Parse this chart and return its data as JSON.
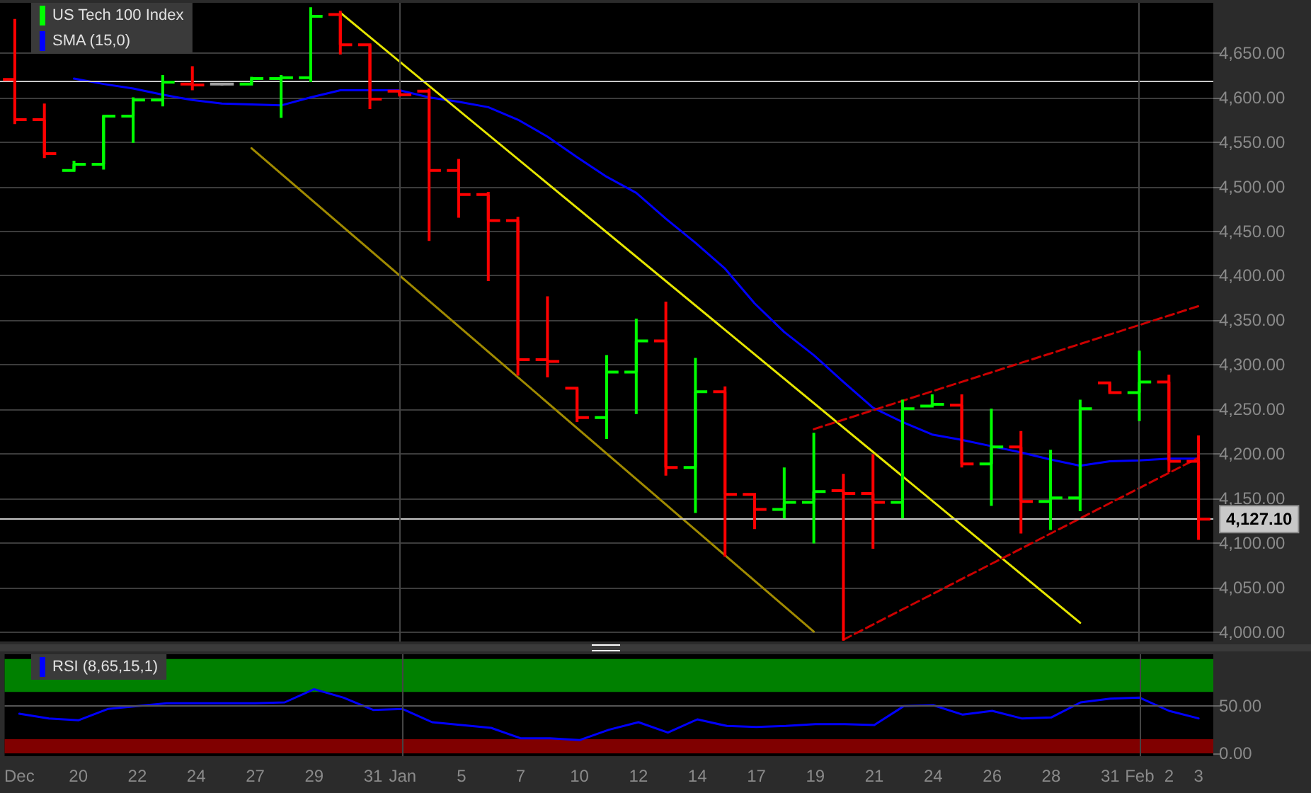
{
  "chart_data": [
    {
      "type": "candlestick",
      "categories": [
        "Dec",
        null,
        "20",
        null,
        "22",
        null,
        "24",
        null,
        "27",
        null,
        "29",
        null,
        "31",
        "Jan",
        null,
        "5",
        null,
        "7",
        null,
        "10",
        null,
        "12",
        null,
        "14",
        null,
        "17",
        null,
        "19",
        null,
        "21",
        null,
        "24",
        null,
        "26",
        null,
        "28",
        null,
        "31",
        "Feb",
        "2",
        "3"
      ],
      "series": [
        {
          "name": "US Tech 100 Index",
          "type": "candlestick",
          "color": "#00ff00",
          "colors": [
            "#ff0000",
            "#ff0000",
            "#00ff00",
            "#00ff00",
            "#00ff00",
            "#00ff00",
            "#ff0000",
            "#a0a0a0",
            "#00ff00",
            "#00ff00",
            "#00ff00",
            "#ff0000",
            "#ff0000",
            "#ff0000",
            "#ff0000",
            "#ff0000",
            "#ff0000",
            "#ff0000",
            "#ff0000",
            "#ff0000",
            "#00ff00",
            "#00ff00",
            "#ff0000",
            "#00ff00",
            "#ff0000",
            "#ff0000",
            "#00ff00",
            "#00ff00",
            "#ff0000",
            "#ff0000",
            "#00ff00",
            "#00ff00",
            "#ff0000",
            "#00ff00",
            "#ff0000",
            "#00ff00",
            "#00ff00",
            "#ff0000",
            "#00ff00",
            "#ff0000",
            "#ff0000"
          ],
          "ohlc": [
            [
              4620,
              4688,
              4570,
              4575
            ],
            [
              4575,
              4593,
              4532,
              4537
            ],
            [
              4518,
              4529,
              4518,
              4525
            ],
            [
              4525,
              4580,
              4519,
              4579
            ],
            [
              4579,
              4600,
              4549,
              4597
            ],
            [
              4597,
              4625,
              4590,
              4617
            ],
            [
              4615,
              4635,
              4608,
              4614
            ],
            [
              4615,
              4616,
              4614,
              4615
            ],
            [
              4615,
              4623,
              4615,
              4621
            ],
            [
              4621,
              4625,
              4577,
              4622
            ],
            [
              4622,
              4701,
              4617,
              4691
            ],
            [
              4693,
              4697,
              4648,
              4659
            ],
            [
              4659,
              4659,
              4587,
              4598
            ],
            [
              4607,
              4607,
              4601,
              4603
            ],
            [
              4607,
              4610,
              4439,
              4518
            ],
            [
              4518,
              4531,
              4465,
              4491
            ],
            [
              4491,
              4494,
              4394,
              4462
            ],
            [
              4462,
              4466,
              4288,
              4306
            ],
            [
              4306,
              4377,
              4286,
              4304
            ],
            [
              4274,
              4274,
              4236,
              4241
            ],
            [
              4241,
              4311,
              4217,
              4292
            ],
            [
              4292,
              4352,
              4245,
              4327
            ],
            [
              4327,
              4371,
              4176,
              4185
            ],
            [
              4185,
              4308,
              4134,
              4270
            ],
            [
              4270,
              4276,
              4085,
              4155
            ],
            [
              4155,
              4155,
              4116,
              4138
            ],
            [
              4138,
              4185,
              4128,
              4146
            ],
            [
              4146,
              4224,
              4100,
              4158
            ],
            [
              4159,
              4178,
              3991,
              4156
            ],
            [
              4156,
              4200,
              4094,
              4146
            ],
            [
              4146,
              4261,
              4128,
              4251
            ],
            [
              4254,
              4267,
              4254,
              4256
            ],
            [
              4255,
              4267,
              4185,
              4189
            ],
            [
              4189,
              4251,
              4142,
              4208
            ],
            [
              4208,
              4226,
              4111,
              4147
            ],
            [
              4147,
              4205,
              4115,
              4151
            ],
            [
              4151,
              4261,
              4136,
              4251
            ],
            [
              4280,
              4280,
              4269,
              4269
            ],
            [
              4269,
              4316,
              4237,
              4281
            ],
            [
              4281,
              4289,
              4180,
              4192
            ],
            [
              4192,
              4221,
              4104,
              4127.1
            ]
          ]
        },
        {
          "name": "SMA (15,0)",
          "type": "line",
          "color": "#0000ff",
          "marker": "none",
          "values": [
            null,
            null,
            4621,
            4615,
            4610,
            4603,
            4597,
            4593,
            4592,
            4591,
            4600,
            4608,
            4608,
            4608,
            4600,
            4595,
            4589,
            4575,
            4556,
            4533,
            4511,
            4493,
            4464,
            4437,
            4408,
            4369,
            4337,
            4311,
            4281,
            4252,
            4236,
            4222,
            4216,
            4209,
            4202,
            4194,
            4187,
            4192,
            4193,
            4195,
            4195
          ]
        },
        {
          "type": "line",
          "color": "#e6e600",
          "marker": "none",
          "values": [
            null,
            null,
            null,
            null,
            null,
            null,
            null,
            null,
            null,
            null,
            null,
            4695,
            null,
            null,
            null,
            null,
            null,
            null,
            null,
            null,
            null,
            null,
            null,
            null,
            null,
            null,
            null,
            null,
            null,
            null,
            null,
            null,
            null,
            null,
            null,
            null,
            4011,
            null,
            null,
            null,
            null
          ]
        },
        {
          "type": "line",
          "color": "#a08a00",
          "marker": "none",
          "values": [
            null,
            null,
            null,
            null,
            null,
            null,
            null,
            null,
            4543,
            null,
            null,
            null,
            null,
            null,
            null,
            null,
            null,
            null,
            null,
            null,
            null,
            null,
            null,
            null,
            null,
            null,
            null,
            4001,
            null,
            null,
            null,
            null,
            null,
            null,
            null,
            null,
            null,
            null,
            null,
            null,
            null
          ]
        },
        {
          "type": "line",
          "color": "#cc0000",
          "marker": "none",
          "line_style": "dashed",
          "values": [
            null,
            null,
            null,
            null,
            null,
            null,
            null,
            null,
            null,
            null,
            null,
            null,
            null,
            null,
            null,
            null,
            null,
            null,
            null,
            null,
            null,
            null,
            null,
            null,
            null,
            null,
            null,
            4228,
            null,
            null,
            null,
            null,
            null,
            null,
            null,
            null,
            null,
            null,
            null,
            null,
            4366
          ]
        },
        {
          "type": "line",
          "color": "#cc0000",
          "marker": "none",
          "line_style": "dashed",
          "values": [
            null,
            null,
            null,
            null,
            null,
            null,
            null,
            null,
            null,
            null,
            null,
            null,
            null,
            null,
            null,
            null,
            null,
            null,
            null,
            null,
            null,
            null,
            null,
            null,
            null,
            null,
            null,
            null,
            3992,
            null,
            null,
            null,
            null,
            null,
            null,
            null,
            null,
            null,
            null,
            null,
            4196
          ]
        }
      ],
      "ylim": [
        3990,
        4706
      ],
      "yticks": [
        {
          "value": 4000,
          "label": "4,000.00"
        },
        {
          "value": 4050,
          "label": "4,050.00"
        },
        {
          "value": 4100,
          "label": "4,100.00"
        },
        {
          "value": 4150,
          "label": "4,150.00"
        },
        {
          "value": 4200,
          "label": "4,200.00"
        },
        {
          "value": 4250,
          "label": "4,250.00"
        },
        {
          "value": 4300,
          "label": "4,300.00"
        },
        {
          "value": 4350,
          "label": "4,350.00"
        },
        {
          "value": 4400,
          "label": "4,400.00"
        },
        {
          "value": 4450,
          "label": "4,450.00"
        },
        {
          "value": 4500,
          "label": "4,500.00"
        },
        {
          "value": 4550,
          "label": "4,550.00"
        },
        {
          "value": 4600,
          "label": "4,600.00"
        },
        {
          "value": 4650,
          "label": "4,650.00"
        }
      ],
      "ref_lines": [
        {
          "axis": "y",
          "value": 4127.1,
          "label": "4,127.10",
          "color": "#c8c8c8"
        },
        {
          "axis": "y",
          "value": 4619,
          "color": "#c8c8c8"
        },
        {
          "axis": "x",
          "value": "Jan",
          "color": "#444444"
        },
        {
          "axis": "x",
          "value": "Feb",
          "color": "#444444"
        }
      ],
      "grid": "y",
      "legend": "top left",
      "tick_labels": "y"
    },
    {
      "type": "line",
      "categories": [
        "Dec",
        null,
        "20",
        null,
        "22",
        null,
        "24",
        null,
        "27",
        null,
        "29",
        null,
        "31",
        "Jan",
        null,
        "5",
        null,
        "7",
        null,
        "10",
        null,
        "12",
        null,
        "14",
        null,
        "17",
        null,
        "19",
        null,
        "21",
        null,
        "24",
        null,
        "26",
        null,
        "28",
        null,
        "31",
        "Feb",
        "2",
        "3"
      ],
      "series": [
        {
          "name": "RSI (8,65,15,1)",
          "color": "#0000ff",
          "marker": "none",
          "values": [
            42,
            37,
            35,
            47,
            50,
            53,
            53,
            53,
            53,
            54,
            68,
            59,
            46,
            47,
            33,
            30,
            27,
            16,
            16,
            14,
            25,
            33,
            22,
            36,
            29,
            28,
            29,
            31,
            31,
            30,
            50,
            51,
            41,
            45,
            37,
            38,
            54,
            58,
            59,
            45,
            37
          ]
        }
      ],
      "ylim": [
        -3,
        105
      ],
      "yticks": [
        {
          "value": 0,
          "label": "0.00"
        },
        {
          "value": 50,
          "label": "50.00"
        }
      ],
      "bands": [
        {
          "axis": "y",
          "from": 65,
          "to": 100,
          "color": "#008000"
        },
        {
          "axis": "y",
          "from": 0,
          "to": 15,
          "color": "#800000"
        }
      ],
      "ref_lines": [
        {
          "axis": "y",
          "value": 50,
          "color": "#555555"
        },
        {
          "axis": "x",
          "value": "Jan",
          "color": "#444444"
        },
        {
          "axis": "x",
          "value": "Feb",
          "color": "#444444"
        }
      ],
      "legend": "top left"
    }
  ]
}
